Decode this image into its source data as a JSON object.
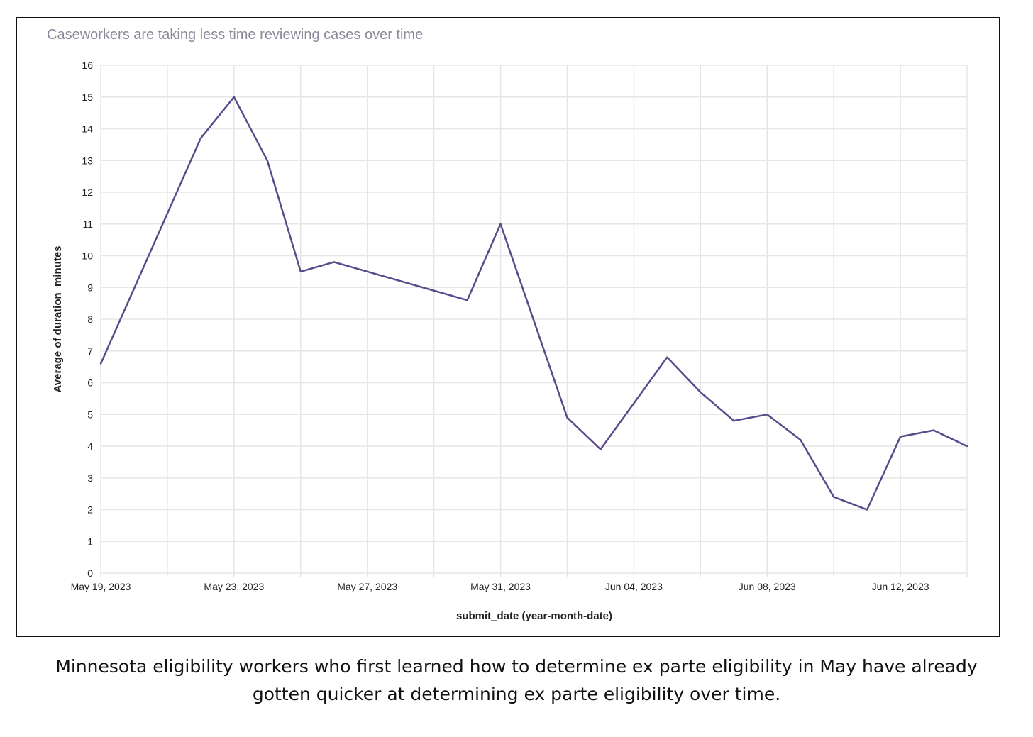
{
  "chart_data": {
    "type": "line",
    "title": "Caseworkers are taking less time reviewing cases over time",
    "xlabel": "submit_date (year-month-date)",
    "ylabel": "Average of duration_minutes",
    "ylim": [
      0,
      16
    ],
    "yticks": [
      0,
      1,
      2,
      3,
      4,
      5,
      6,
      7,
      8,
      9,
      10,
      11,
      12,
      13,
      14,
      15,
      16
    ],
    "xlim": [
      "2023-05-19",
      "2023-06-14"
    ],
    "xticks": [
      {
        "date": "2023-05-19",
        "label": "May 19, 2023"
      },
      {
        "date": "2023-05-23",
        "label": "May 23, 2023"
      },
      {
        "date": "2023-05-27",
        "label": "May 27, 2023"
      },
      {
        "date": "2023-05-31",
        "label": "May 31, 2023"
      },
      {
        "date": "2023-06-04",
        "label": "Jun 04, 2023"
      },
      {
        "date": "2023-06-08",
        "label": "Jun 08, 2023"
      },
      {
        "date": "2023-06-12",
        "label": "Jun 12, 2023"
      }
    ],
    "grid": true,
    "line_color": "#5b4a8b",
    "grid_color": "#e6e6e6",
    "series": [
      {
        "points": [
          {
            "x": "2023-05-19",
            "y": 6.6
          },
          {
            "x": "2023-05-22",
            "y": 13.7
          },
          {
            "x": "2023-05-23",
            "y": 15.0
          },
          {
            "x": "2023-05-24",
            "y": 13.0
          },
          {
            "x": "2023-05-25",
            "y": 9.5
          },
          {
            "x": "2023-05-26",
            "y": 9.8
          },
          {
            "x": "2023-05-30",
            "y": 8.6
          },
          {
            "x": "2023-05-31",
            "y": 11.0
          },
          {
            "x": "2023-06-02",
            "y": 4.9
          },
          {
            "x": "2023-06-03",
            "y": 3.9
          },
          {
            "x": "2023-06-05",
            "y": 6.8
          },
          {
            "x": "2023-06-06",
            "y": 5.7
          },
          {
            "x": "2023-06-07",
            "y": 4.8
          },
          {
            "x": "2023-06-08",
            "y": 5.0
          },
          {
            "x": "2023-06-09",
            "y": 4.2
          },
          {
            "x": "2023-06-10",
            "y": 2.4
          },
          {
            "x": "2023-06-11",
            "y": 2.0
          },
          {
            "x": "2023-06-12",
            "y": 4.3
          },
          {
            "x": "2023-06-13",
            "y": 4.5
          },
          {
            "x": "2023-06-14",
            "y": 4.0
          }
        ]
      }
    ]
  },
  "caption": {
    "line1": "Minnesota eligibility workers who first learned how to determine ex parte eligibility in May have already",
    "line2": "gotten quicker at determining ex parte eligibility over time."
  }
}
